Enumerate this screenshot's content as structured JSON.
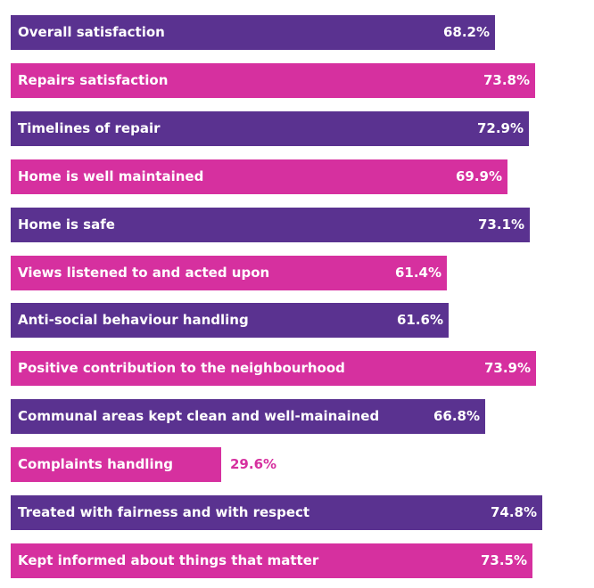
{
  "chart_data": {
    "type": "bar",
    "orientation": "horizontal",
    "title": "",
    "xlabel": "",
    "ylabel": "",
    "xlim": [
      0,
      82.5
    ],
    "grid": false,
    "legend": "none",
    "colors": {
      "purple": "#5a3290",
      "pink": "#d6309f"
    },
    "categories": [
      "Overall satisfaction",
      "Repairs satisfaction",
      "Timelines of repair",
      "Home is well maintained",
      "Home is safe",
      "Views listened to and acted upon",
      "Anti-social behaviour handling",
      "Positive contribution to the neighbourhood",
      "Communal areas kept clean and well-mainained",
      "Complaints handling",
      "Treated with fairness and with respect",
      "Kept informed about things that matter"
    ],
    "values": [
      68.2,
      73.8,
      72.9,
      69.9,
      73.1,
      61.4,
      61.6,
      73.9,
      66.8,
      29.6,
      74.8,
      73.5
    ],
    "value_labels": [
      "68.2%",
      "73.8%",
      "72.9%",
      "69.9%",
      "73.1%",
      "61.4%",
      "61.6%",
      "73.9%",
      "66.8%",
      "29.6%",
      "74.8%",
      "73.5%"
    ],
    "bar_colors": [
      "purple",
      "pink",
      "purple",
      "pink",
      "purple",
      "pink",
      "purple",
      "pink",
      "purple",
      "pink",
      "purple",
      "pink"
    ]
  }
}
